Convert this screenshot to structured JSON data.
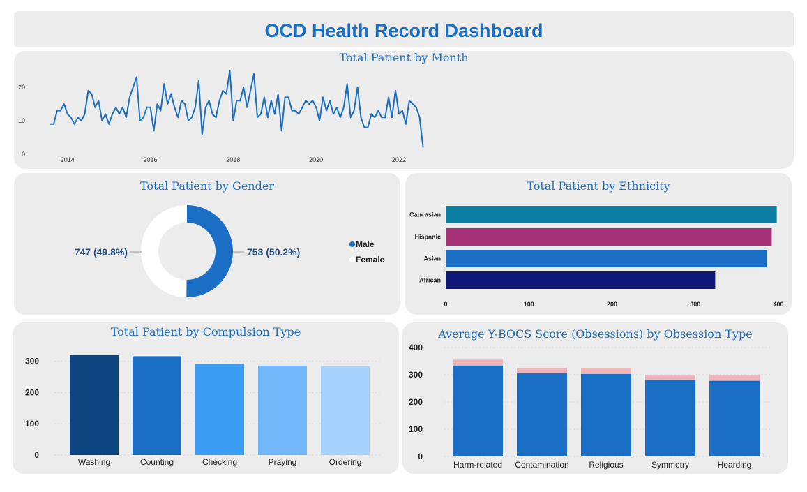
{
  "dashboard": {
    "title": "OCD Health Record Dashboard"
  },
  "colors": {
    "line": "#1a6fc4",
    "male": "#1a6fc4",
    "female": "#ffffff",
    "eth": [
      "#0d7fa3",
      "#a83278",
      "#1a6fc4",
      "#10187a"
    ],
    "comp": [
      "#0c457f",
      "#1a6fc4",
      "#3c9df5",
      "#72b8fb",
      "#a6d2fd"
    ],
    "obs_main": "#1a6fc4",
    "obs_top": "#f0b4ba"
  },
  "chart_data": [
    {
      "id": "month",
      "type": "line",
      "title": "Total Patient by Month",
      "x_ticks": [
        "2014",
        "2016",
        "2018",
        "2020",
        "2022"
      ],
      "y_ticks": [
        "0",
        "10",
        "20"
      ],
      "ylim": [
        0,
        25
      ],
      "x_start": "2013-08",
      "values": [
        9,
        9,
        13,
        13,
        15,
        12,
        11,
        9,
        11,
        10,
        12,
        19,
        18,
        14,
        16,
        10,
        12,
        9,
        12,
        14,
        12,
        14,
        11,
        17,
        20,
        23,
        10,
        11,
        14,
        14,
        7,
        15,
        13,
        21,
        15,
        18,
        14,
        11,
        16,
        15,
        10,
        11,
        14,
        22,
        6,
        14,
        16,
        12,
        11,
        16,
        19,
        18,
        25,
        10,
        16,
        16,
        20,
        14,
        19,
        24,
        11,
        12,
        17,
        11,
        16,
        12,
        18,
        7,
        17,
        17,
        13,
        13,
        12,
        14,
        16,
        15,
        16,
        14,
        10,
        17,
        13,
        16,
        12,
        14,
        11,
        14,
        21,
        11,
        13,
        20,
        11,
        8,
        8,
        12,
        11,
        13,
        11,
        11,
        17,
        11,
        19,
        12,
        13,
        9,
        16,
        15,
        14,
        11,
        2
      ]
    },
    {
      "id": "gender",
      "type": "pie",
      "title": "Total Patient by Gender",
      "labels": [
        "Male",
        "Female"
      ],
      "values": [
        753,
        747
      ],
      "value_labels": [
        "753 (50.2%)",
        "747 (49.8%)"
      ]
    },
    {
      "id": "ethnicity",
      "type": "bar",
      "title": "Total Patient by Ethnicity",
      "categories": [
        "Caucasian",
        "Hispanic",
        "Asian",
        "African"
      ],
      "values": [
        398,
        392,
        386,
        324
      ],
      "x_ticks": [
        "0",
        "100",
        "200",
        "300",
        "400"
      ],
      "xlim": [
        0,
        400
      ]
    },
    {
      "id": "compulsion",
      "type": "bar",
      "title": "Total Patient by Compulsion Type",
      "categories": [
        "Washing",
        "Counting",
        "Checking",
        "Praying",
        "Ordering"
      ],
      "values": [
        320,
        316,
        292,
        286,
        284
      ],
      "y_ticks": [
        "0",
        "100",
        "200",
        "300"
      ],
      "ylim": [
        0,
        350
      ]
    },
    {
      "id": "ybocs",
      "type": "bar",
      "title": "Average Y-BOCS Score (Obsessions) by Obsession Type",
      "categories": [
        "Harm-related",
        "Contamination",
        "Religious",
        "Symmetry",
        "Hoarding"
      ],
      "series": [
        {
          "values": [
            334,
            306,
            303,
            281,
            278
          ]
        },
        {
          "values": [
            22,
            20,
            20,
            19,
            21
          ]
        }
      ],
      "y_ticks": [
        "0",
        "100",
        "200",
        "300",
        "400"
      ],
      "ylim": [
        0,
        400
      ]
    }
  ]
}
